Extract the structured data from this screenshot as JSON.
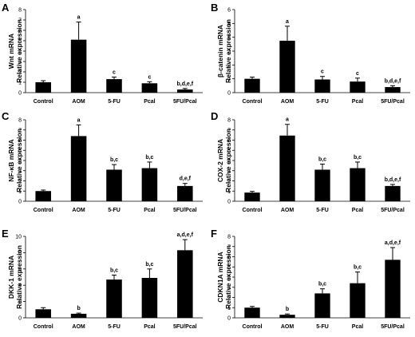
{
  "chart_data": [
    {
      "type": "bar",
      "panel": "A",
      "ylabel": [
        "Wnt mRNA",
        "Relative expression"
      ],
      "ylim": [
        0,
        8
      ],
      "yticks": [
        0,
        1,
        2,
        3,
        4,
        5,
        6,
        7,
        8
      ],
      "categories": [
        "Control",
        "AOM",
        "5-FU",
        "Pcal",
        "5FU/Pcal"
      ],
      "values": [
        1.0,
        5.1,
        1.3,
        0.9,
        0.3
      ],
      "errors": [
        0.15,
        1.7,
        0.2,
        0.15,
        0.1
      ],
      "annotations": [
        "",
        "a",
        "c",
        "c",
        "b,d,e,f"
      ]
    },
    {
      "type": "bar",
      "panel": "B",
      "ylabel": [
        "β-catenin mRNA",
        "Relative expression"
      ],
      "ylim": [
        0,
        6
      ],
      "yticks": [
        0,
        1,
        2,
        3,
        4,
        5,
        6
      ],
      "categories": [
        "Control",
        "AOM",
        "5-FU",
        "Pcal",
        "5FU/Pcal"
      ],
      "values": [
        1.0,
        3.75,
        0.95,
        0.8,
        0.4
      ],
      "errors": [
        0.12,
        1.05,
        0.22,
        0.25,
        0.1
      ],
      "annotations": [
        "",
        "a",
        "c",
        "c",
        "b,d,e,f"
      ]
    },
    {
      "type": "bar",
      "panel": "C",
      "ylabel": [
        "NF-κB mRNA",
        "Relative expression"
      ],
      "ylim": [
        0,
        8
      ],
      "yticks": [
        0,
        1,
        2,
        3,
        4,
        5,
        6,
        7,
        8
      ],
      "categories": [
        "Control",
        "AOM",
        "5-FU",
        "Pcal",
        "5FU/Pcal"
      ],
      "values": [
        1.0,
        6.4,
        3.1,
        3.25,
        1.5
      ],
      "errors": [
        0.1,
        1.1,
        0.5,
        0.6,
        0.25
      ],
      "annotations": [
        "",
        "a",
        "b,c",
        "b,c",
        "d,e,f"
      ]
    },
    {
      "type": "bar",
      "panel": "D",
      "ylabel": [
        "COX-2 mRNA",
        "Relative expression"
      ],
      "ylim": [
        0,
        8
      ],
      "yticks": [
        0,
        1,
        2,
        3,
        4,
        5,
        6,
        7,
        8
      ],
      "categories": [
        "Control",
        "AOM",
        "5-FU",
        "Pcal",
        "5FU/Pcal"
      ],
      "values": [
        0.85,
        6.45,
        3.1,
        3.25,
        1.5
      ],
      "errors": [
        0.12,
        1.1,
        0.55,
        0.6,
        0.15
      ],
      "annotations": [
        "",
        "a",
        "b,c",
        "b,c",
        "b,d,e,f"
      ]
    },
    {
      "type": "bar",
      "panel": "E",
      "ylabel": [
        "DKK-1 mRNA",
        "Relative expression"
      ],
      "ylim": [
        0,
        10
      ],
      "yticks": [
        0,
        2,
        4,
        6,
        8,
        10
      ],
      "categories": [
        "Control",
        "AOM",
        "5-FU",
        "Pcal",
        "5FU/Pcal"
      ],
      "values": [
        1.05,
        0.5,
        4.7,
        4.9,
        8.3
      ],
      "errors": [
        0.2,
        0.08,
        0.55,
        1.1,
        1.3
      ],
      "annotations": [
        "",
        "b",
        "b,c",
        "b,c",
        "a,d,e,f"
      ]
    },
    {
      "type": "bar",
      "panel": "F",
      "ylabel": [
        "CDKN1A mRNA",
        "Relative expression"
      ],
      "ylim": [
        0,
        8
      ],
      "yticks": [
        0,
        1,
        2,
        3,
        4,
        5,
        6,
        7,
        8
      ],
      "categories": [
        "Control",
        "AOM",
        "5-FU",
        "Pcal",
        "5FU/Pcal"
      ],
      "values": [
        1.0,
        0.3,
        2.4,
        3.4,
        5.7
      ],
      "errors": [
        0.12,
        0.08,
        0.45,
        1.1,
        1.2
      ],
      "annotations": [
        "",
        "b",
        "b,c",
        "b,c",
        "a,d,e,f"
      ]
    }
  ]
}
